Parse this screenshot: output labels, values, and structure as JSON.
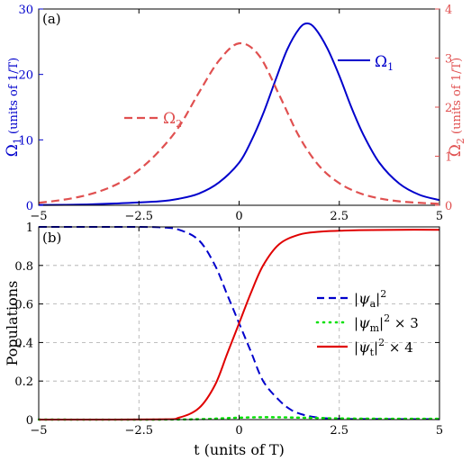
{
  "chart_data": [
    {
      "type": "line",
      "panel_label": "(a)",
      "xlim": [
        -5,
        5
      ],
      "xticks": [
        -5,
        -2.5,
        0,
        2.5,
        5
      ],
      "xtick_labels": [
        "−5",
        "−2.5",
        "0",
        "2.5",
        "5"
      ],
      "y_left": {
        "label_symbol": "Ω",
        "label_sub": "1",
        "label_units": " (units of 1/T)",
        "ylim": [
          0,
          30
        ],
        "ticks": [
          0,
          10,
          20,
          30
        ],
        "color": "#0000cc"
      },
      "y_right": {
        "label_symbol": "Ω",
        "label_sub": "2",
        "label_units": " (units of 1/T)",
        "ylim": [
          0,
          4
        ],
        "ticks": [
          0,
          1,
          2,
          3,
          4
        ],
        "color": "#e05050"
      },
      "series": [
        {
          "name_symbol": "Ω",
          "name_sub": "1",
          "axis": "left",
          "color": "#0000cc",
          "dash": "solid",
          "x": [
            -5,
            -4,
            -3,
            -2,
            -1.5,
            -1,
            -0.5,
            0,
            0.3,
            0.6,
            0.9,
            1.2,
            1.5,
            1.7,
            1.9,
            2.2,
            2.5,
            2.8,
            3.1,
            3.5,
            4,
            4.5,
            5
          ],
          "y": [
            0.05,
            0.1,
            0.3,
            0.6,
            1.0,
            1.8,
            3.5,
            6.5,
            9.8,
            14,
            19,
            23.8,
            27,
            27.8,
            27,
            24,
            19.8,
            15,
            10.8,
            6.5,
            3.3,
            1.6,
            0.8
          ]
        },
        {
          "name_symbol": "Ω",
          "name_sub": "2",
          "axis": "right",
          "color": "#e05050",
          "dash": "dashed",
          "x": [
            -5,
            -4.5,
            -4,
            -3.5,
            -3,
            -2.5,
            -2,
            -1.5,
            -1,
            -0.5,
            0,
            0.5,
            1,
            1.5,
            2,
            2.5,
            3,
            3.5,
            4,
            4.5,
            5
          ],
          "y": [
            0.05,
            0.1,
            0.17,
            0.28,
            0.45,
            0.72,
            1.1,
            1.6,
            2.3,
            2.95,
            3.3,
            3.05,
            2.25,
            1.4,
            0.8,
            0.45,
            0.25,
            0.14,
            0.08,
            0.05,
            0.03
          ]
        }
      ]
    },
    {
      "type": "line",
      "panel_label": "(b)",
      "xlabel": "t (units of T)",
      "ylabel": "Populations",
      "xlim": [
        -5,
        5
      ],
      "ylim": [
        0,
        1
      ],
      "xticks": [
        -5,
        -2.5,
        0,
        2.5,
        5
      ],
      "xtick_labels": [
        "−5",
        "−2.5",
        "0",
        "2.5",
        "5"
      ],
      "yticks": [
        0,
        0.2,
        0.4,
        0.6,
        0.8,
        1
      ],
      "ytick_labels": [
        "0",
        "0.2",
        "0.4",
        "0.6",
        "0.8",
        "1"
      ],
      "grid": true,
      "legend_position": "right",
      "series": [
        {
          "legend_sym": "ψ",
          "legend_sub": "a",
          "legend_tail": "",
          "color": "#0000cc",
          "dash": "dashed",
          "x": [
            -5,
            -3,
            -2,
            -1.5,
            -1,
            -0.6,
            -0.3,
            0,
            0.3,
            0.6,
            1,
            1.3,
            1.6,
            2,
            2.5,
            3,
            5
          ],
          "y": [
            1,
            1,
            0.998,
            0.985,
            0.93,
            0.8,
            0.65,
            0.5,
            0.35,
            0.2,
            0.1,
            0.05,
            0.025,
            0.01,
            0.004,
            0.003,
            0.002
          ]
        },
        {
          "legend_sym": "ψ",
          "legend_sub": "m",
          "legend_tail": " × 3",
          "color": "#00e000",
          "dash": "dotted",
          "x": [
            -5,
            -2,
            -1,
            -0.5,
            0,
            0.5,
            1,
            1.5,
            2,
            3,
            5
          ],
          "y": [
            0,
            0,
            0.002,
            0.006,
            0.01,
            0.012,
            0.012,
            0.01,
            0.008,
            0.005,
            0.004
          ]
        },
        {
          "legend_sym": "ψ",
          "legend_sub": "t",
          "legend_tail": " × 4",
          "color": "#e00000",
          "dash": "solid",
          "x": [
            -5,
            -2,
            -1.5,
            -1,
            -0.6,
            -0.3,
            0,
            0.3,
            0.6,
            1,
            1.5,
            2,
            2.5,
            3,
            4,
            5
          ],
          "y": [
            0,
            0.001,
            0.01,
            0.06,
            0.18,
            0.34,
            0.5,
            0.66,
            0.8,
            0.91,
            0.96,
            0.975,
            0.98,
            0.983,
            0.985,
            0.985
          ]
        }
      ]
    }
  ]
}
